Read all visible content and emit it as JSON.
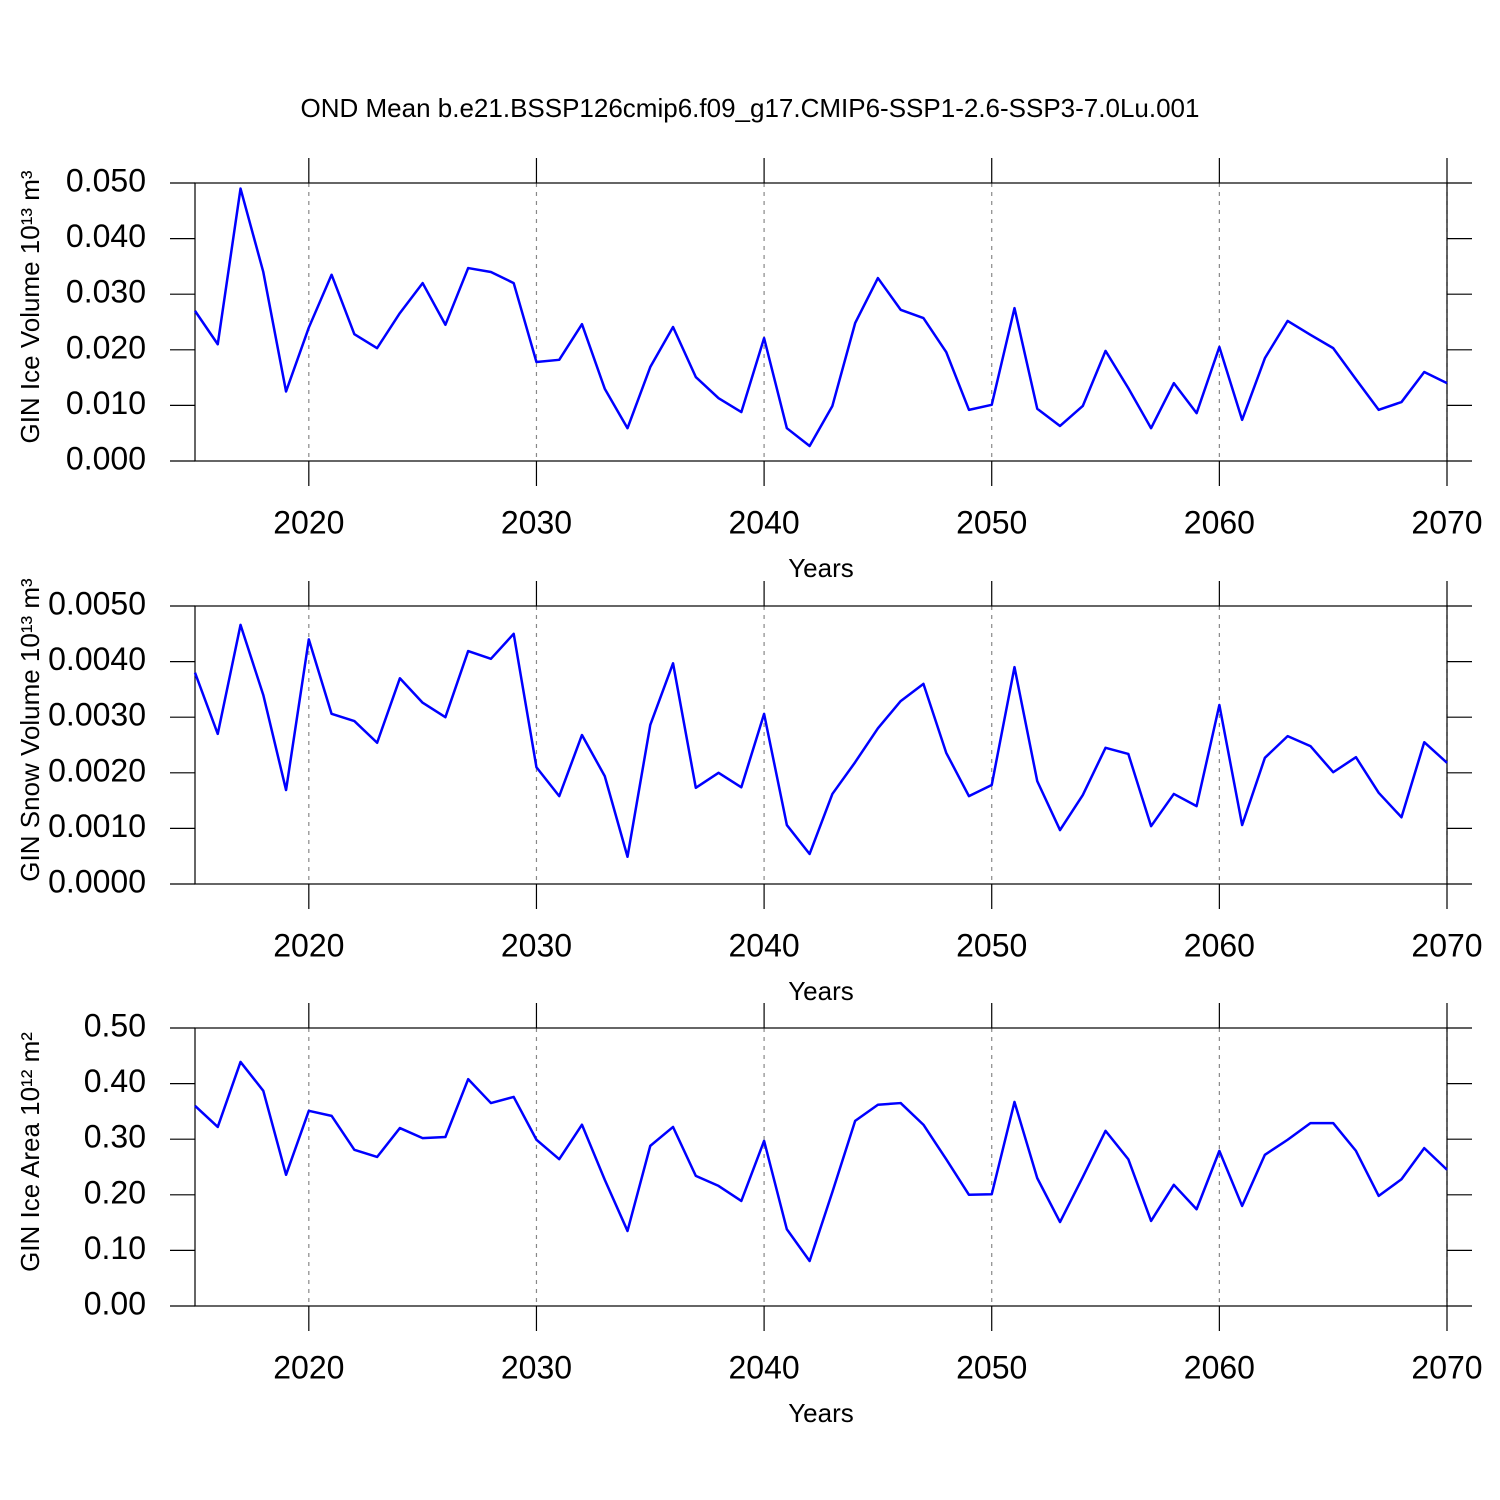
{
  "chart_data": [
    {
      "type": "line",
      "title": "OND Mean b.e21.BSSP126cmip6.f09_g17.CMIP6-SSP1-2.6-SSP3-7.0Lu.001",
      "xlabel": "Years",
      "ylabel": "GIN Ice Volume 10¹³ m³",
      "color": "#0000ff",
      "xgrid": true,
      "x": [
        2015,
        2016,
        2017,
        2018,
        2019,
        2020,
        2021,
        2022,
        2023,
        2024,
        2025,
        2026,
        2027,
        2028,
        2029,
        2030,
        2031,
        2032,
        2033,
        2034,
        2035,
        2036,
        2037,
        2038,
        2039,
        2040,
        2041,
        2042,
        2043,
        2044,
        2045,
        2046,
        2047,
        2048,
        2049,
        2050,
        2051,
        2052,
        2053,
        2054,
        2055,
        2056,
        2057,
        2058,
        2059,
        2060,
        2061,
        2062,
        2063,
        2064,
        2065,
        2066,
        2067,
        2068,
        2069,
        2070
      ],
      "values": [
        0.027,
        0.021,
        0.049,
        0.034,
        0.0125,
        0.024,
        0.0335,
        0.0228,
        0.0203,
        0.0266,
        0.032,
        0.0245,
        0.0347,
        0.034,
        0.032,
        0.0178,
        0.0182,
        0.0246,
        0.013,
        0.0059,
        0.0169,
        0.0241,
        0.0151,
        0.0113,
        0.0088,
        0.0221,
        0.0059,
        0.0027,
        0.0099,
        0.0248,
        0.0329,
        0.0272,
        0.0257,
        0.0196,
        0.0092,
        0.0101,
        0.0275,
        0.0094,
        0.0063,
        0.0099,
        0.0198,
        0.0131,
        0.0059,
        0.014,
        0.0086,
        0.0205,
        0.0074,
        0.0185,
        0.0252,
        0.0227,
        0.0203,
        0.0147,
        0.0092,
        0.0106,
        0.016,
        0.014
      ],
      "xlim": [
        2015,
        2070
      ],
      "xticks": [
        2020,
        2030,
        2040,
        2050,
        2060,
        2070
      ],
      "ylim": [
        0,
        0.05
      ],
      "yticks": [
        {
          "value": 0,
          "label": "0.000"
        },
        {
          "value": 0.01,
          "label": "0.010"
        },
        {
          "value": 0.02,
          "label": "0.020"
        },
        {
          "value": 0.03,
          "label": "0.030"
        },
        {
          "value": 0.04,
          "label": "0.040"
        },
        {
          "value": 0.05,
          "label": "0.050"
        }
      ]
    },
    {
      "type": "line",
      "xlabel": "Years",
      "ylabel": "GIN Snow Volume 10¹³ m³",
      "color": "#0000ff",
      "xgrid": true,
      "x": [
        2015,
        2016,
        2017,
        2018,
        2019,
        2020,
        2021,
        2022,
        2023,
        2024,
        2025,
        2026,
        2027,
        2028,
        2029,
        2030,
        2031,
        2032,
        2033,
        2034,
        2035,
        2036,
        2037,
        2038,
        2039,
        2040,
        2041,
        2042,
        2043,
        2044,
        2045,
        2046,
        2047,
        2048,
        2049,
        2050,
        2051,
        2052,
        2053,
        2054,
        2055,
        2056,
        2057,
        2058,
        2059,
        2060,
        2061,
        2062,
        2063,
        2064,
        2065,
        2066,
        2067,
        2068,
        2069,
        2070
      ],
      "values": [
        0.0038,
        0.0027,
        0.00466,
        0.0034,
        0.00169,
        0.0044,
        0.00306,
        0.00293,
        0.00254,
        0.0037,
        0.00326,
        0.003,
        0.00419,
        0.00405,
        0.0045,
        0.0021,
        0.00158,
        0.00268,
        0.00194,
        0.00049,
        0.00286,
        0.00397,
        0.00173,
        0.002,
        0.00174,
        0.00306,
        0.00106,
        0.00054,
        0.00162,
        0.00219,
        0.0028,
        0.00329,
        0.0036,
        0.00236,
        0.00158,
        0.00178,
        0.0039,
        0.00185,
        0.00097,
        0.0016,
        0.00245,
        0.00234,
        0.00104,
        0.00162,
        0.0014,
        0.00322,
        0.00106,
        0.00227,
        0.00266,
        0.00248,
        0.00201,
        0.00228,
        0.00164,
        0.0012,
        0.00255,
        0.00218
      ],
      "xlim": [
        2015,
        2070
      ],
      "xticks": [
        2020,
        2030,
        2040,
        2050,
        2060,
        2070
      ],
      "ylim": [
        0,
        0.005
      ],
      "yticks": [
        {
          "value": 0,
          "label": "0.0000"
        },
        {
          "value": 0.001,
          "label": "0.0010"
        },
        {
          "value": 0.002,
          "label": "0.0020"
        },
        {
          "value": 0.003,
          "label": "0.0030"
        },
        {
          "value": 0.004,
          "label": "0.0040"
        },
        {
          "value": 0.005,
          "label": "0.0050"
        }
      ]
    },
    {
      "type": "line",
      "xlabel": "Years",
      "ylabel": "GIN Ice Area 10¹² m²",
      "color": "#0000ff",
      "xgrid": true,
      "x": [
        2015,
        2016,
        2017,
        2018,
        2019,
        2020,
        2021,
        2022,
        2023,
        2024,
        2025,
        2026,
        2027,
        2028,
        2029,
        2030,
        2031,
        2032,
        2033,
        2034,
        2035,
        2036,
        2037,
        2038,
        2039,
        2040,
        2041,
        2042,
        2043,
        2044,
        2045,
        2046,
        2047,
        2048,
        2049,
        2050,
        2051,
        2052,
        2053,
        2054,
        2055,
        2056,
        2057,
        2058,
        2059,
        2060,
        2061,
        2062,
        2063,
        2064,
        2065,
        2066,
        2067,
        2068,
        2069,
        2070
      ],
      "values": [
        0.36,
        0.322,
        0.439,
        0.387,
        0.236,
        0.351,
        0.342,
        0.281,
        0.268,
        0.32,
        0.302,
        0.304,
        0.408,
        0.365,
        0.376,
        0.299,
        0.264,
        0.326,
        0.227,
        0.135,
        0.288,
        0.322,
        0.234,
        0.216,
        0.189,
        0.297,
        0.138,
        0.081,
        0.205,
        0.333,
        0.362,
        0.365,
        0.326,
        0.264,
        0.2,
        0.201,
        0.367,
        0.23,
        0.151,
        0.232,
        0.315,
        0.264,
        0.153,
        0.218,
        0.174,
        0.279,
        0.18,
        0.272,
        0.299,
        0.329,
        0.329,
        0.279,
        0.198,
        0.228,
        0.284,
        0.245
      ],
      "xlim": [
        2015,
        2070
      ],
      "xticks": [
        2020,
        2030,
        2040,
        2050,
        2060,
        2070
      ],
      "ylim": [
        0,
        0.5
      ],
      "yticks": [
        {
          "value": 0,
          "label": "0.00"
        },
        {
          "value": 0.1,
          "label": "0.10"
        },
        {
          "value": 0.2,
          "label": "0.20"
        },
        {
          "value": 0.3,
          "label": "0.30"
        },
        {
          "value": 0.4,
          "label": "0.40"
        },
        {
          "value": 0.5,
          "label": "0.50"
        }
      ]
    }
  ]
}
